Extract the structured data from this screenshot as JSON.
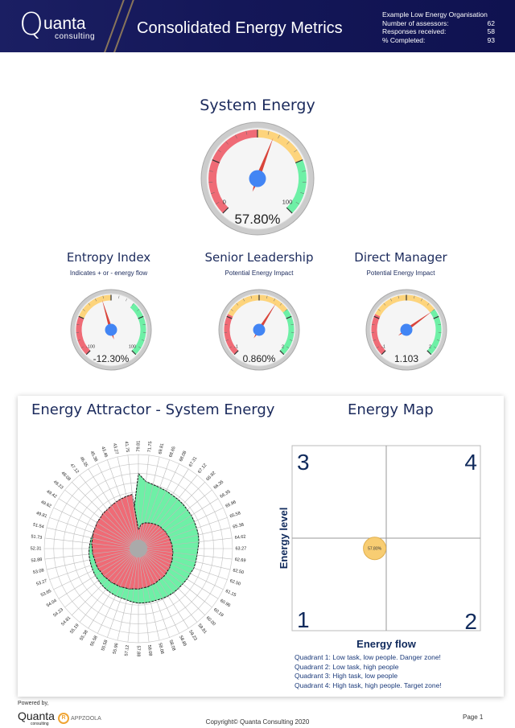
{
  "header": {
    "logo_q": "Q",
    "logo_name": "uanta",
    "logo_sub": "consulting",
    "title": "Consolidated Energy Metrics",
    "org": "Example Low Energy Organisation",
    "stats": [
      {
        "label": "Number of assessors:",
        "value": "62"
      },
      {
        "label": "Responses received:",
        "value": "58"
      },
      {
        "label": "% Completed:",
        "value": "93"
      }
    ]
  },
  "gauges": [
    {
      "title": "System Energy",
      "subtitle": "",
      "min": 0,
      "max": 100,
      "min_label": "0",
      "max_label": "100",
      "value": 57.8,
      "display": "57.80%",
      "bands": [
        {
          "from": 0,
          "to": 50,
          "color": "#ef6b76"
        },
        {
          "from": 50,
          "to": 75,
          "color": "#fdd47c"
        },
        {
          "from": 75,
          "to": 100,
          "color": "#6ef0a6"
        }
      ]
    },
    {
      "title": "Entropy Index",
      "subtitle": "Indicates + or - energy flow",
      "min": -100,
      "max": 100,
      "min_label": "-100",
      "max_label": "100",
      "value": -12.3,
      "display": "-12.30%",
      "bands": [
        {
          "from": -100,
          "to": -50,
          "color": "#ef6b76"
        },
        {
          "from": -50,
          "to": 0,
          "color": "#fdd47c"
        },
        {
          "from": 30,
          "to": 100,
          "color": "#6ef0a6"
        }
      ]
    },
    {
      "title": "Senior Leadership",
      "subtitle": "Potential Energy Impact",
      "min": -1,
      "max": 2,
      "min_label": "-1",
      "max_label": "2",
      "value": 0.86,
      "display": "0.860%",
      "bands": [
        {
          "from": -1,
          "to": -0.2,
          "color": "#ef6b76"
        },
        {
          "from": -0.2,
          "to": 1.1,
          "color": "#fdd47c"
        },
        {
          "from": 1.1,
          "to": 2,
          "color": "#6ef0a6"
        }
      ]
    },
    {
      "title": "Direct Manager",
      "subtitle": "Potential Energy Impact",
      "min": -1,
      "max": 2,
      "min_label": "-1",
      "max_label": "2",
      "value": 1.103,
      "display": "1.103",
      "bands": [
        {
          "from": -1,
          "to": -0.2,
          "color": "#ef6b76"
        },
        {
          "from": -0.2,
          "to": 1.1,
          "color": "#fdd47c"
        },
        {
          "from": 1.1,
          "to": 2,
          "color": "#6ef0a6"
        }
      ]
    }
  ],
  "attractor": {
    "title": "Energy Attractor - System Energy"
  },
  "map": {
    "title": "Energy Map",
    "xlabel": "Energy flow",
    "ylabel": "Energy level",
    "quadrant_labels": [
      "1",
      "2",
      "3",
      "4"
    ],
    "quadrants": [
      "Quadrant 1: Low task, low people. Danger zone!",
      "Quadrant 2: Low task, high people",
      "Quadrant 3: High task, low people",
      "Quadrant 4: High task, high people. Target zone!"
    ]
  },
  "chart_data": [
    {
      "type": "radar",
      "title": "Energy Attractor - System Energy",
      "rlim": [
        0,
        100
      ],
      "categories": [
        "79.81",
        "71.75",
        "69.81",
        "68.65",
        "68.08",
        "67.31",
        "67.12",
        "66.92",
        "66.35",
        "66.35",
        "65.96",
        "65.58",
        "65.38",
        "64.62",
        "63.27",
        "62.69",
        "62.50",
        "62.50",
        "61.15",
        "60.96",
        "60.19",
        "60.00",
        "59.81",
        "59.23",
        "58.85",
        "58.08",
        "58.08",
        "58.08",
        "57.88",
        "57.12",
        "55.96",
        "55.58",
        "55.58",
        "55.38",
        "55.19",
        "54.81",
        "54.23",
        "54.04",
        "53.65",
        "53.27",
        "53.08",
        "52.88",
        "52.31",
        "51.73",
        "51.54",
        "49.81",
        "49.62",
        "49.42",
        "49.23",
        "48.08",
        "47.12",
        "46.35",
        "45.38",
        "43.46",
        "43.27",
        "41.75"
      ],
      "series": [
        {
          "name": "outer",
          "color": "#6ef0a6",
          "values": [
            79.81,
            71.75,
            69.81,
            68.65,
            68.08,
            67.31,
            67.12,
            66.92,
            66.35,
            66.35,
            65.96,
            65.58,
            65.38,
            64.62,
            63.27,
            62.69,
            62.5,
            62.5,
            61.15,
            60.96,
            60.19,
            60,
            59.81,
            59.23,
            58.85,
            58.08,
            58.08,
            58.08,
            57.88,
            57.12,
            55.96,
            55.58,
            55.58,
            55.38,
            55.19,
            54.81,
            54.23,
            54.04,
            53.65,
            53.27,
            53.08,
            52.88,
            52.31,
            51.73,
            51.54,
            49.81,
            49.62,
            49.42,
            49.23,
            48.08,
            47.12,
            46.35,
            45.38,
            43.46,
            43.27,
            41.75
          ]
        },
        {
          "name": "inner",
          "color": "#ef6b76",
          "values": [
            20,
            26,
            28,
            29,
            30,
            31,
            32,
            33,
            33,
            34,
            34,
            35,
            35,
            36,
            36,
            37,
            37,
            38,
            38,
            39,
            39,
            40,
            40,
            40,
            41,
            41,
            42,
            42,
            43,
            43,
            44,
            44,
            45,
            45,
            46,
            46,
            47,
            47,
            48,
            48,
            48,
            49,
            49,
            50,
            50,
            51,
            51,
            52,
            52,
            53,
            53,
            54,
            55,
            56,
            57,
            58
          ]
        }
      ]
    },
    {
      "type": "scatter",
      "title": "Energy Map",
      "xlabel": "Energy flow",
      "ylabel": "Energy level",
      "xlim": [
        -100,
        100
      ],
      "ylim": [
        0,
        130
      ],
      "points": [
        {
          "x": -12.3,
          "y": 57.8,
          "label": "57.80%"
        }
      ]
    }
  ],
  "footer": {
    "powered": "Powered by,",
    "logo": "Quanta",
    "logo_sub": "consulting",
    "partner": "APPZOOLA",
    "partner_mark": "R",
    "copyright": "Copyright© Quanta Consulting 2020",
    "page": "Page 1"
  }
}
